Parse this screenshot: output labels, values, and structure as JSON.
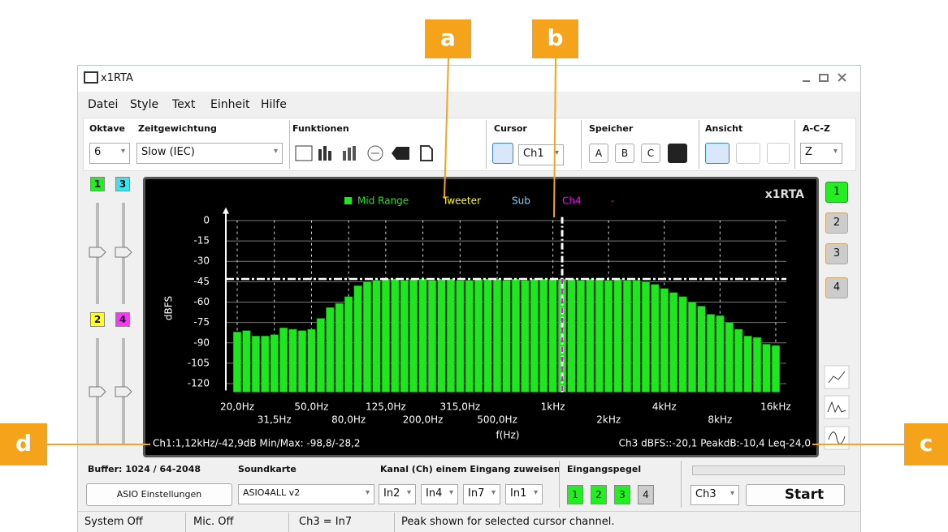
{
  "callouts": [
    "a",
    "b",
    "c",
    "d"
  ],
  "window": {
    "title": "x1RTA",
    "menu": [
      "Datei",
      "Style",
      "Text",
      "Einheit",
      "Hilfe"
    ]
  },
  "toolbar": {
    "oktave_label": "Oktave",
    "oktave": "6",
    "zeit_label": "Zeitgewichtung",
    "zeit": "Slow (IEC)",
    "funktionen_label": "Funktionen",
    "cursor_label": "Cursor",
    "cursor": "Ch1",
    "speicher_label": "Speicher",
    "speicher": [
      "A",
      "B",
      "C"
    ],
    "ansicht_label": "Ansicht",
    "acz_label": "A-C-Z",
    "acz": "Z"
  },
  "left_channels": [
    "1",
    "3",
    "2",
    "4"
  ],
  "right_channels": [
    "1",
    "2",
    "3",
    "4"
  ],
  "chart_data": {
    "type": "bar",
    "brand": "x1RTA",
    "y_label": "dBFS",
    "x_label": "f(Hz)",
    "categories": [
      "20,0Hz",
      null,
      null,
      null,
      "31,5Hz",
      null,
      null,
      null,
      "50,0Hz",
      null,
      null,
      null,
      "80,0Hz",
      null,
      null,
      null,
      "125,0Hz",
      null,
      null,
      null,
      "200,0Hz",
      null,
      null,
      null,
      "315,0Hz",
      null,
      null,
      null,
      "500,0Hz",
      null,
      null,
      null,
      null,
      null,
      "1kHz",
      null,
      null,
      null,
      null,
      null,
      "2kHz",
      null,
      null,
      null,
      null,
      null,
      "4kHz",
      null,
      null,
      null,
      null,
      null,
      "8kHz",
      null,
      null,
      null,
      null,
      null,
      "16kHz"
    ],
    "series": [
      {
        "name": "Mid Range",
        "color": "#1fe61f",
        "values": [
          -82,
          -81,
          -85,
          -85,
          -84,
          -79,
          -80,
          -81,
          -80,
          -72,
          -64,
          -61,
          -56,
          -48,
          -45,
          -44,
          -43,
          -43,
          -44,
          -43,
          -43,
          -44,
          -43,
          -43,
          -44,
          -44,
          -43,
          -43,
          -43,
          -44,
          -43,
          -44,
          -43,
          -43,
          -43,
          -43,
          -43,
          -44,
          -43,
          -43,
          -44,
          -43,
          -44,
          -44,
          -45,
          -47,
          -50,
          -53,
          -56,
          -60,
          -63,
          -69,
          -70,
          -75,
          -80,
          -85,
          -86,
          -91,
          -92
        ]
      }
    ],
    "legend_extra": [
      {
        "name": "Tweeter",
        "color": "#ffff00"
      },
      {
        "name": "Sub",
        "color": "#7fd4ff"
      },
      {
        "name": "Ch4",
        "color": "#ff00ff"
      },
      {
        "name": "-",
        "color": "#ff2020"
      }
    ],
    "ylim": [
      -125,
      5
    ],
    "yticks": [
      0,
      -15,
      -30,
      -45,
      -60,
      -75,
      -90,
      -105,
      -120
    ],
    "grid": true,
    "peak_line": -43,
    "cursor_index": 35,
    "readout_left": "Ch1:1,12kHz/-42,9dB Min/Max: -98,8/-28,2",
    "readout_right": "Ch3 dBFS::-20,1 PeakdB:-10,4 Leq-24,0"
  },
  "bottom": {
    "buffer": "Buffer: 1024 / 64-2048",
    "asio": "ASIO Einstellungen",
    "soundkarte_label": "Soundkarte",
    "soundkarte": "ASIO4ALL v2",
    "kanal_label": "Kanal (Ch) einem Eingang zuweisen",
    "inputs": [
      "In2",
      "In4",
      "In7",
      "In1"
    ],
    "pegel_label": "Eingangspegel",
    "pegel": [
      "1",
      "2",
      "3",
      "4"
    ],
    "channel": "Ch3",
    "start": "Start"
  },
  "status": [
    "System Off",
    "Mic. Off",
    "Ch3 = In7",
    "Peak shown for selected cursor channel."
  ]
}
